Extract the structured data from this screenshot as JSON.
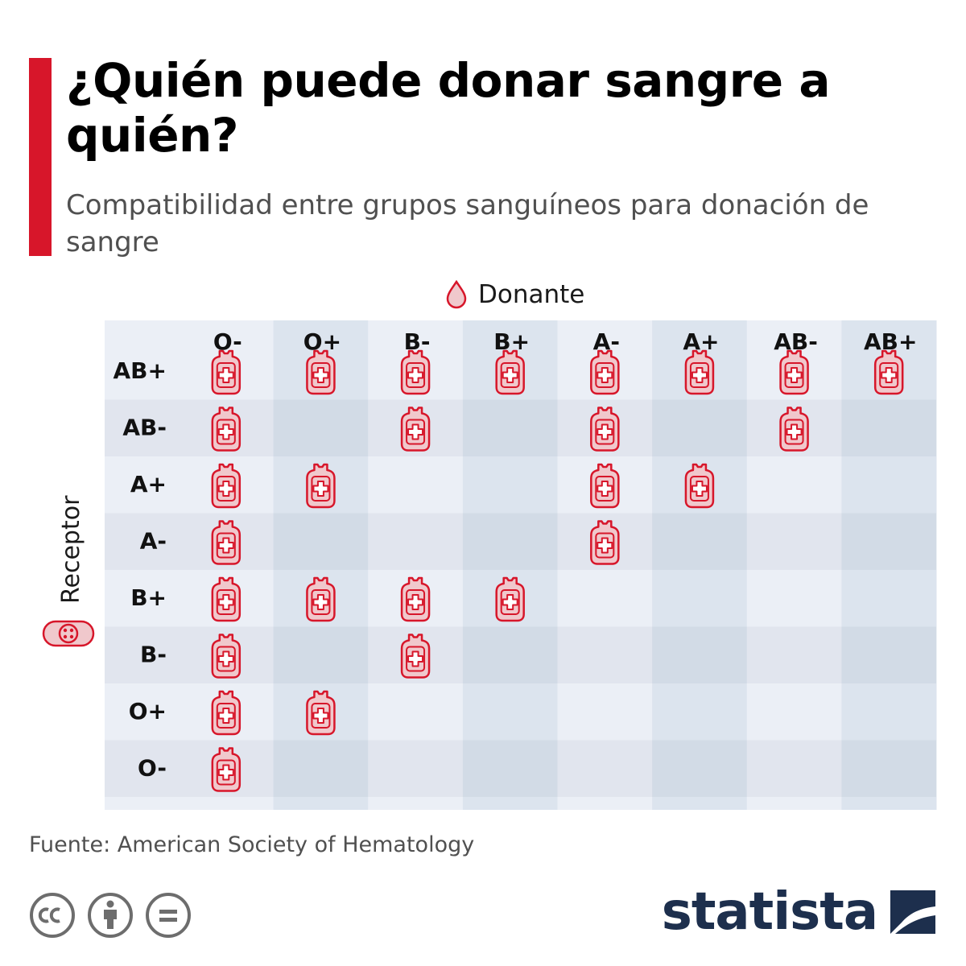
{
  "title": "¿Quién puede donar sangre a quién?",
  "subtitle": "Compatibilidad entre grupos sanguíneos para donación de sangre",
  "legend": {
    "donor_label": "Donante",
    "receptor_label": "Receptor"
  },
  "footer": {
    "source": "Fuente: American Society of Hematology",
    "brand": "statista",
    "license_icons": [
      "creative-commons-icon",
      "attribution-icon",
      "no-derivatives-icon"
    ]
  },
  "colors": {
    "accent": "#d7162a",
    "bag_fill": "#f0c8cc",
    "bag_stroke": "#d7162a",
    "band_dark": "#dce4ee",
    "band_light": "#ebeff6",
    "brand": "#1d2f4d"
  },
  "chart_data": {
    "type": "table",
    "x_axis_label": "Donante",
    "y_axis_label": "Receptor",
    "donors": [
      "O-",
      "O+",
      "B-",
      "B+",
      "A-",
      "A+",
      "AB-",
      "AB+"
    ],
    "receptors": [
      "AB+",
      "AB-",
      "A+",
      "A-",
      "B+",
      "B-",
      "O+",
      "O-"
    ],
    "compatibility": [
      [
        1,
        1,
        1,
        1,
        1,
        1,
        1,
        1
      ],
      [
        1,
        0,
        1,
        0,
        1,
        0,
        1,
        0
      ],
      [
        1,
        1,
        0,
        0,
        1,
        1,
        0,
        0
      ],
      [
        1,
        0,
        0,
        0,
        1,
        0,
        0,
        0
      ],
      [
        1,
        1,
        1,
        1,
        0,
        0,
        0,
        0
      ],
      [
        1,
        0,
        1,
        0,
        0,
        0,
        0,
        0
      ],
      [
        1,
        1,
        0,
        0,
        0,
        0,
        0,
        0
      ],
      [
        1,
        0,
        0,
        0,
        0,
        0,
        0,
        0
      ]
    ]
  }
}
